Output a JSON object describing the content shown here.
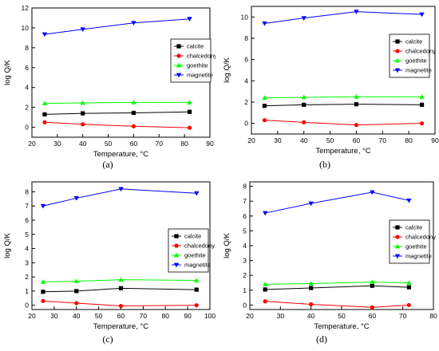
{
  "colors": {
    "calcite": "#000000",
    "chalcedony": "#ff0000",
    "goethite": "#00ff00",
    "magnetite": "#0000ff"
  },
  "chart_data": [
    {
      "type": "line",
      "caption": "(a)",
      "xlabel": "Temperature, °C",
      "ylabel": "log Q/K",
      "xlim": [
        20,
        90
      ],
      "ylim": [
        -1,
        12
      ],
      "xticks": [
        20,
        30,
        40,
        50,
        60,
        70,
        80,
        90
      ],
      "yticks": [
        0,
        2,
        4,
        6,
        8,
        10,
        12
      ],
      "legend": "right",
      "x": [
        25,
        40,
        60,
        82
      ],
      "series": [
        {
          "name": "calcite",
          "marker": "square",
          "values": [
            1.3,
            1.4,
            1.45,
            1.55
          ]
        },
        {
          "name": "chalcedony",
          "marker": "circle",
          "values": [
            0.5,
            0.3,
            0.1,
            -0.05
          ]
        },
        {
          "name": "goethite",
          "marker": "triangle-up",
          "values": [
            2.4,
            2.45,
            2.5,
            2.5
          ]
        },
        {
          "name": "magnetite",
          "marker": "triangle-down",
          "values": [
            9.35,
            9.85,
            10.5,
            10.9
          ]
        }
      ]
    },
    {
      "type": "line",
      "caption": "(b)",
      "xlabel": "Temperature, °C",
      "ylabel": "log Q/K",
      "xlim": [
        20,
        90
      ],
      "ylim": [
        -1,
        11
      ],
      "xticks": [
        20,
        30,
        40,
        50,
        60,
        70,
        80,
        90
      ],
      "yticks": [
        0,
        2,
        4,
        6,
        8,
        10
      ],
      "legend": "right",
      "x": [
        25,
        40,
        60,
        85
      ],
      "series": [
        {
          "name": "calcite",
          "marker": "square",
          "values": [
            1.65,
            1.75,
            1.8,
            1.75
          ]
        },
        {
          "name": "chalcedony",
          "marker": "circle",
          "values": [
            0.3,
            0.1,
            -0.15,
            0.0
          ]
        },
        {
          "name": "goethite",
          "marker": "triangle-up",
          "values": [
            2.4,
            2.45,
            2.5,
            2.5
          ]
        },
        {
          "name": "magnetite",
          "marker": "triangle-down",
          "values": [
            9.4,
            9.9,
            10.5,
            10.25
          ]
        }
      ]
    },
    {
      "type": "line",
      "caption": "(c)",
      "xlabel": "Temperature, °C",
      "ylabel": "log Q/K",
      "xlim": [
        20,
        100
      ],
      "ylim": [
        -0.3,
        8.7
      ],
      "xticks": [
        20,
        30,
        40,
        50,
        60,
        70,
        80,
        90,
        100
      ],
      "yticks": [
        0,
        1,
        2,
        3,
        4,
        5,
        6,
        7,
        8
      ],
      "legend": "right",
      "x": [
        25,
        40,
        60,
        94
      ],
      "series": [
        {
          "name": "calcite",
          "marker": "square",
          "values": [
            0.95,
            1.0,
            1.2,
            1.1
          ]
        },
        {
          "name": "chalcedony",
          "marker": "circle",
          "values": [
            0.3,
            0.15,
            -0.05,
            0.0
          ]
        },
        {
          "name": "goethite",
          "marker": "triangle-up",
          "values": [
            1.65,
            1.7,
            1.8,
            1.75
          ]
        },
        {
          "name": "magnetite",
          "marker": "triangle-down",
          "values": [
            7.0,
            7.55,
            8.2,
            7.9
          ]
        }
      ]
    },
    {
      "type": "line",
      "caption": "(d)",
      "xlabel": "Temperature, °C",
      "ylabel": "log Q/K",
      "xlim": [
        20,
        80
      ],
      "ylim": [
        -0.3,
        8.3
      ],
      "xticks": [
        20,
        30,
        40,
        50,
        60,
        70,
        80
      ],
      "yticks": [
        0,
        1,
        2,
        3,
        4,
        5,
        6,
        7,
        8
      ],
      "legend": "right",
      "x": [
        25,
        40,
        60,
        72
      ],
      "series": [
        {
          "name": "calcite",
          "marker": "square",
          "values": [
            1.05,
            1.15,
            1.3,
            1.2
          ]
        },
        {
          "name": "chalcedony",
          "marker": "circle",
          "values": [
            0.25,
            0.05,
            -0.15,
            0.0
          ]
        },
        {
          "name": "goethite",
          "marker": "triangle-up",
          "values": [
            1.4,
            1.45,
            1.55,
            1.5
          ]
        },
        {
          "name": "magnetite",
          "marker": "triangle-down",
          "values": [
            6.2,
            6.85,
            7.6,
            7.05
          ]
        }
      ]
    }
  ]
}
